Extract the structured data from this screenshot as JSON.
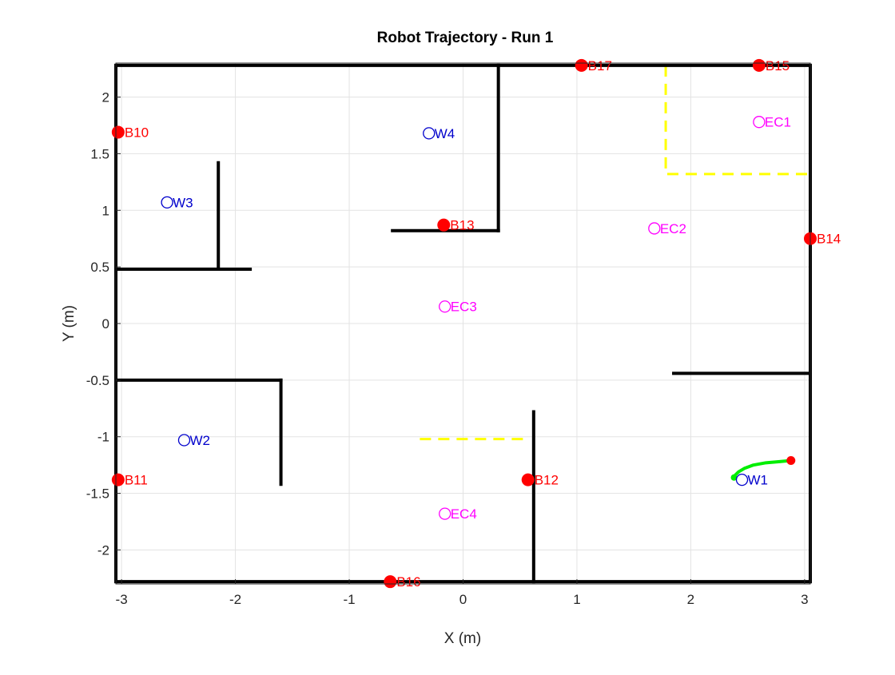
{
  "chart_data": {
    "type": "scatter",
    "title": "Robot Trajectory - Run 1",
    "xlabel": "X (m)",
    "ylabel": "Y (m)",
    "xlim": [
      -3.05,
      3.05
    ],
    "ylim": [
      -2.3,
      2.3
    ],
    "xticks": [
      -3,
      -2,
      -1,
      0,
      1,
      2,
      3
    ],
    "yticks": [
      -2,
      -1.5,
      -1,
      -0.5,
      0,
      0.5,
      1,
      1.5,
      2
    ],
    "grid": true,
    "colors": {
      "walls": "#000000",
      "dashed": "#ffff00",
      "beacon": "#ff0000",
      "beacon_label": "#ff0000",
      "waypoint": "#0000cc",
      "waypoint_label": "#0000cc",
      "ec": "#ff00ff",
      "ec_label": "#ff00ff",
      "trajectory": "#00ee00",
      "start": "#ff0000"
    },
    "walls": [
      [
        [
          -3.05,
          2.28
        ],
        [
          3.05,
          2.28
        ]
      ],
      [
        [
          -3.05,
          -2.28
        ],
        [
          3.05,
          -2.28
        ]
      ],
      [
        [
          -3.05,
          -2.28
        ],
        [
          -3.05,
          2.28
        ]
      ],
      [
        [
          3.05,
          -2.28
        ],
        [
          3.05,
          2.28
        ]
      ],
      [
        [
          0.31,
          2.28
        ],
        [
          0.31,
          0.82
        ]
      ],
      [
        [
          -0.62,
          0.82
        ],
        [
          0.31,
          0.82
        ]
      ],
      [
        [
          -3.05,
          0.48
        ],
        [
          -1.87,
          0.48
        ]
      ],
      [
        [
          -2.15,
          1.42
        ],
        [
          -2.15,
          0.48
        ]
      ],
      [
        [
          -3.05,
          -0.5
        ],
        [
          -1.6,
          -0.5
        ]
      ],
      [
        [
          -1.6,
          -0.5
        ],
        [
          -1.6,
          -1.42
        ]
      ],
      [
        [
          0.62,
          -0.78
        ],
        [
          0.62,
          -2.28
        ]
      ],
      [
        [
          1.85,
          -0.44
        ],
        [
          3.05,
          -0.44
        ]
      ]
    ],
    "dashed_lines": [
      [
        [
          1.78,
          2.28
        ],
        [
          1.78,
          1.32
        ],
        [
          3.05,
          1.32
        ]
      ],
      [
        [
          -0.38,
          -1.02
        ],
        [
          0.56,
          -1.02
        ]
      ]
    ],
    "beacons": [
      {
        "label": "B10",
        "x": -3.03,
        "y": 1.69
      },
      {
        "label": "B11",
        "x": -3.03,
        "y": -1.38
      },
      {
        "label": "B12",
        "x": 0.57,
        "y": -1.38
      },
      {
        "label": "B13",
        "x": -0.17,
        "y": 0.87
      },
      {
        "label": "B14",
        "x": 3.05,
        "y": 0.75
      },
      {
        "label": "B15",
        "x": 2.6,
        "y": 2.28
      },
      {
        "label": "B16",
        "x": -0.64,
        "y": -2.28
      },
      {
        "label": "B17",
        "x": 1.04,
        "y": 2.28
      }
    ],
    "waypoints": [
      {
        "label": "W1",
        "x": 2.45,
        "y": -1.38
      },
      {
        "label": "W2",
        "x": -2.45,
        "y": -1.03
      },
      {
        "label": "W3",
        "x": -2.6,
        "y": 1.07
      },
      {
        "label": "W4",
        "x": -0.3,
        "y": 1.68
      }
    ],
    "ec_points": [
      {
        "label": "EC1",
        "x": 2.6,
        "y": 1.78
      },
      {
        "label": "EC2",
        "x": 1.68,
        "y": 0.84
      },
      {
        "label": "EC3",
        "x": -0.16,
        "y": 0.15
      },
      {
        "label": "EC4",
        "x": -0.16,
        "y": -1.68
      }
    ],
    "trajectory": {
      "x": [
        2.88,
        2.78,
        2.66,
        2.55,
        2.47,
        2.42,
        2.39,
        2.38
      ],
      "y": [
        -1.21,
        -1.22,
        -1.23,
        -1.25,
        -1.28,
        -1.31,
        -1.34,
        -1.36
      ]
    },
    "start": {
      "x": 2.88,
      "y": -1.21
    }
  }
}
